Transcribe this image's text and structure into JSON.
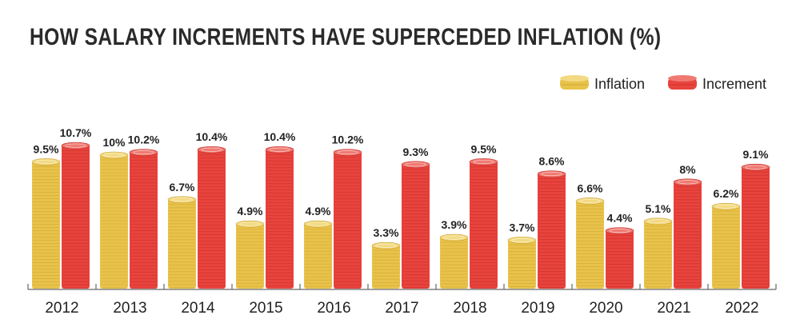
{
  "title": "HOW SALARY INCREMENTS HAVE SUPERCEDED INFLATION (%)",
  "chart_data": {
    "type": "bar",
    "title": "HOW SALARY INCREMENTS HAVE SUPERCEDED INFLATION (%)",
    "categories": [
      "2012",
      "2013",
      "2014",
      "2015",
      "2016",
      "2017",
      "2018",
      "2019",
      "2020",
      "2021",
      "2022"
    ],
    "series": [
      {
        "name": "Inflation",
        "color": "#e8c24a",
        "values": [
          9.5,
          10,
          6.7,
          4.9,
          4.9,
          3.3,
          3.9,
          3.7,
          6.6,
          5.1,
          6.2
        ],
        "labels": [
          "9.5%",
          "10%",
          "6.7%",
          "4.9%",
          "4.9%",
          "3.3%",
          "3.9%",
          "3.7%",
          "6.6%",
          "5.1%",
          "6.2%"
        ]
      },
      {
        "name": "Increment",
        "color": "#e8433d",
        "values": [
          10.7,
          10.2,
          10.4,
          10.4,
          10.2,
          9.3,
          9.5,
          8.6,
          4.4,
          8,
          9.1
        ],
        "labels": [
          "10.7%",
          "10.2%",
          "10.4%",
          "10.4%",
          "10.2%",
          "9.3%",
          "9.5%",
          "8.6%",
          "4.4%",
          "8%",
          "9.1%"
        ]
      }
    ],
    "legend_position": "top-right",
    "grid": false,
    "ylim": [
      0,
      11
    ],
    "mark_style": "coin stacks"
  }
}
